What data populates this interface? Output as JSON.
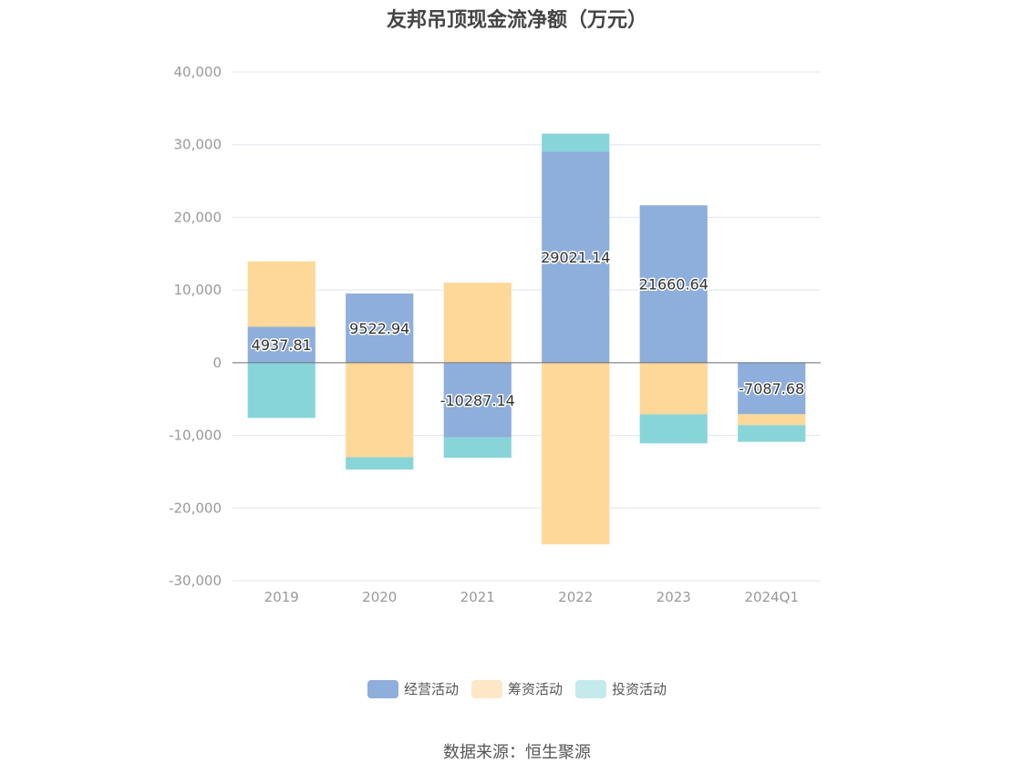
{
  "chart_data": {
    "type": "bar",
    "stacked": true,
    "title": "友邦吊顶现金流净额（万元）",
    "categories": [
      "2019",
      "2020",
      "2021",
      "2022",
      "2023",
      "2024Q1"
    ],
    "ylim": [
      -30000,
      40000
    ],
    "yticks": [
      40000,
      30000,
      20000,
      10000,
      0,
      -10000,
      -20000,
      -30000
    ],
    "ytick_labels": [
      "40,000",
      "30,000",
      "20,000",
      "10,000",
      "0",
      "-10,000",
      "-20,000",
      "-30,000"
    ],
    "grid": true,
    "legend_position": "bottom",
    "series": [
      {
        "name": "经营活动",
        "color": "#8eaedb",
        "values": [
          4937.81,
          9522.94,
          -10287.14,
          29021.14,
          21660.64,
          -7087.68
        ],
        "labels": [
          "4937.81",
          "9522.94",
          "-10287.14",
          "29021.14",
          "21660.64",
          "-7087.68"
        ]
      },
      {
        "name": "筹资活动",
        "color": "#fed898",
        "values": [
          9000,
          -13000,
          11000,
          -25000,
          -7100,
          -1500
        ]
      },
      {
        "name": "投资活动",
        "color": "#88d5d9",
        "values": [
          -7600,
          -1700,
          -2800,
          2500,
          -4000,
          -2300
        ]
      }
    ],
    "legend_colors": [
      "#8eaedb",
      "#fee7c6",
      "#c4eaec"
    ]
  },
  "source": "数据来源：恒生聚源"
}
